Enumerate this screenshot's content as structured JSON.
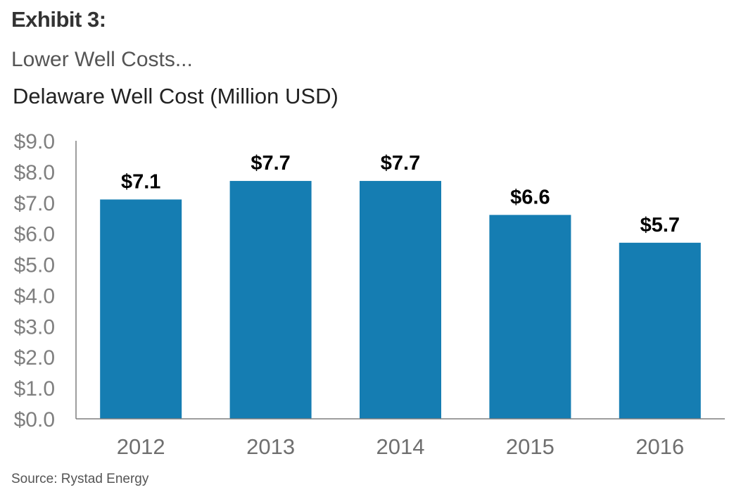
{
  "header": {
    "exhibit": "Exhibit 3:",
    "subtitle": "Lower Well Costs..."
  },
  "footer": {
    "source": "Source: Rystad Energy"
  },
  "colors": {
    "bar": "#157db2",
    "axis": "#7f7f7f"
  },
  "chart_data": {
    "type": "bar",
    "title": "Delaware Well Cost (Million USD)",
    "categories": [
      "2012",
      "2013",
      "2014",
      "2015",
      "2016"
    ],
    "values": [
      7.1,
      7.7,
      7.7,
      6.6,
      5.7
    ],
    "data_labels": [
      "$7.1",
      "$7.7",
      "$7.7",
      "$6.6",
      "$5.7"
    ],
    "y_ticks": [
      0,
      1,
      2,
      3,
      4,
      5,
      6,
      7,
      8,
      9
    ],
    "y_tick_labels": [
      "$0.0",
      "$1.0",
      "$2.0",
      "$3.0",
      "$4.0",
      "$5.0",
      "$6.0",
      "$7.0",
      "$8.0",
      "$9.0"
    ],
    "ylim": [
      0,
      9
    ],
    "xlabel": "",
    "ylabel": "",
    "grid": false,
    "legend": "none"
  }
}
